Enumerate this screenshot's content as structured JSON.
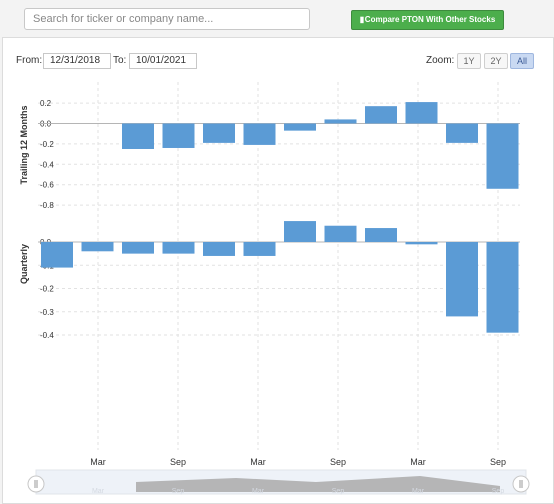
{
  "search": {
    "placeholder": "Search for ticker or company name..."
  },
  "compare": {
    "label": "Compare PTON With Other Stocks",
    "icon": "bar-chart-icon"
  },
  "range": {
    "from_label": "From:",
    "from_value": "12/31/2018",
    "to_label": "To:",
    "to_value": "10/01/2021"
  },
  "zoom": {
    "label": "Zoom:",
    "options": [
      "1Y",
      "2Y",
      "All"
    ],
    "selected": "All"
  },
  "colors": {
    "bar": "#5b9bd5",
    "grid": "#e2e2e2",
    "button": "#4cae4c"
  },
  "chart_data": [
    {
      "type": "bar",
      "ylabel": "Trailing 12 Months",
      "ylim": [
        -0.8,
        0.2
      ],
      "yticks": [
        0.2,
        0.0,
        -0.2,
        -0.4,
        -0.6,
        -0.8
      ],
      "ytick_labels": [
        "0.2",
        "0.0",
        "-0.2",
        "-0.4",
        "-0.6",
        "-0.8"
      ],
      "values": [
        -0.25,
        -0.24,
        -0.19,
        -0.21,
        -0.07,
        0.04,
        0.17,
        0.21,
        -0.19,
        -0.64
      ],
      "grid": true
    },
    {
      "type": "bar",
      "ylabel": "Quarterly",
      "ylim": [
        -0.4,
        0.1
      ],
      "yticks": [
        0.0,
        -0.1,
        -0.2,
        -0.3,
        -0.4
      ],
      "ytick_labels": [
        "0.0",
        "-0.1",
        "-0.2",
        "-0.3",
        "-0.4"
      ],
      "values": [
        -0.11,
        -0.04,
        -0.05,
        -0.05,
        -0.06,
        -0.06,
        0.09,
        0.07,
        0.06,
        -0.01,
        -0.32,
        -0.39
      ],
      "grid": true
    }
  ],
  "x_axis": {
    "tick_labels": [
      "Mar",
      "Sep",
      "Mar",
      "Sep",
      "Mar",
      "Sep"
    ]
  },
  "navigator": {
    "labels": [
      "Mar",
      "Sep",
      "Mar",
      "Sep",
      "Mar",
      "Sep"
    ]
  }
}
